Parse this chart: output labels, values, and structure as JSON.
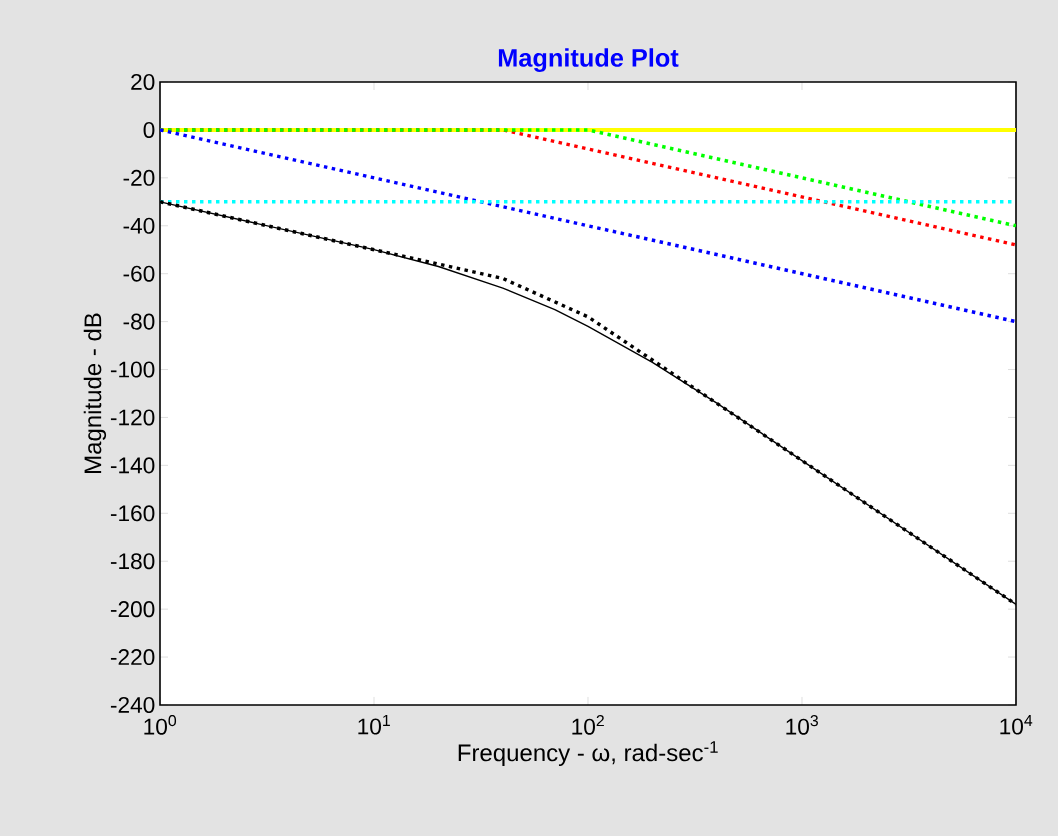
{
  "chart_data": {
    "type": "line",
    "title": "Magnitude Plot",
    "xlabel": "Frequency - ω, rad-sec$^{-1}$",
    "ylabel": "Magnitude - dB",
    "log": "x",
    "marker": "none",
    "xlim": [
      1,
      10000
    ],
    "ylim": [
      -240,
      20
    ],
    "xticks": [
      {
        "value": 1,
        "label": "10$^{0}$"
      },
      {
        "value": 10,
        "label": "10$^{1}$"
      },
      {
        "value": 100,
        "label": "10$^{2}$"
      },
      {
        "value": 1000,
        "label": "10$^{3}$"
      },
      {
        "value": 10000,
        "label": "10$^{4}$"
      }
    ],
    "yticks": [
      20,
      0,
      -20,
      -40,
      -60,
      -80,
      -100,
      -120,
      -140,
      -160,
      -180,
      -200,
      -220,
      -240
    ],
    "series": [
      {
        "color": "#ffff00",
        "line_style": "solid",
        "x": [
          1,
          10000
        ],
        "values": [
          0,
          0
        ]
      },
      {
        "color": "#ff0000",
        "line_style": "dotted",
        "x": [
          1,
          40,
          10000
        ],
        "values": [
          0,
          0,
          -48
        ]
      },
      {
        "color": "#00ff00",
        "line_style": "dotted",
        "x": [
          1,
          100,
          10000
        ],
        "values": [
          0,
          0,
          -40
        ]
      },
      {
        "color": "#0000ff",
        "line_style": "dotted",
        "x": [
          1,
          10000
        ],
        "values": [
          0,
          -80
        ]
      },
      {
        "color": "#00ffff",
        "line_style": "dotted",
        "x": [
          1,
          10000
        ],
        "values": [
          -30,
          -30
        ]
      },
      {
        "color": "#000000",
        "line_style": "dotted",
        "x": [
          1,
          40,
          100,
          10000
        ],
        "values": [
          -30,
          -62,
          -78,
          -198
        ]
      },
      {
        "color": "#000000",
        "line_style": "solid",
        "x": [
          1,
          10,
          20,
          40,
          70,
          100,
          200,
          400,
          1000,
          10000
        ],
        "values": [
          -30,
          -50,
          -57,
          -66,
          -75,
          -82,
          -97,
          -114,
          -138,
          -198
        ]
      }
    ]
  }
}
